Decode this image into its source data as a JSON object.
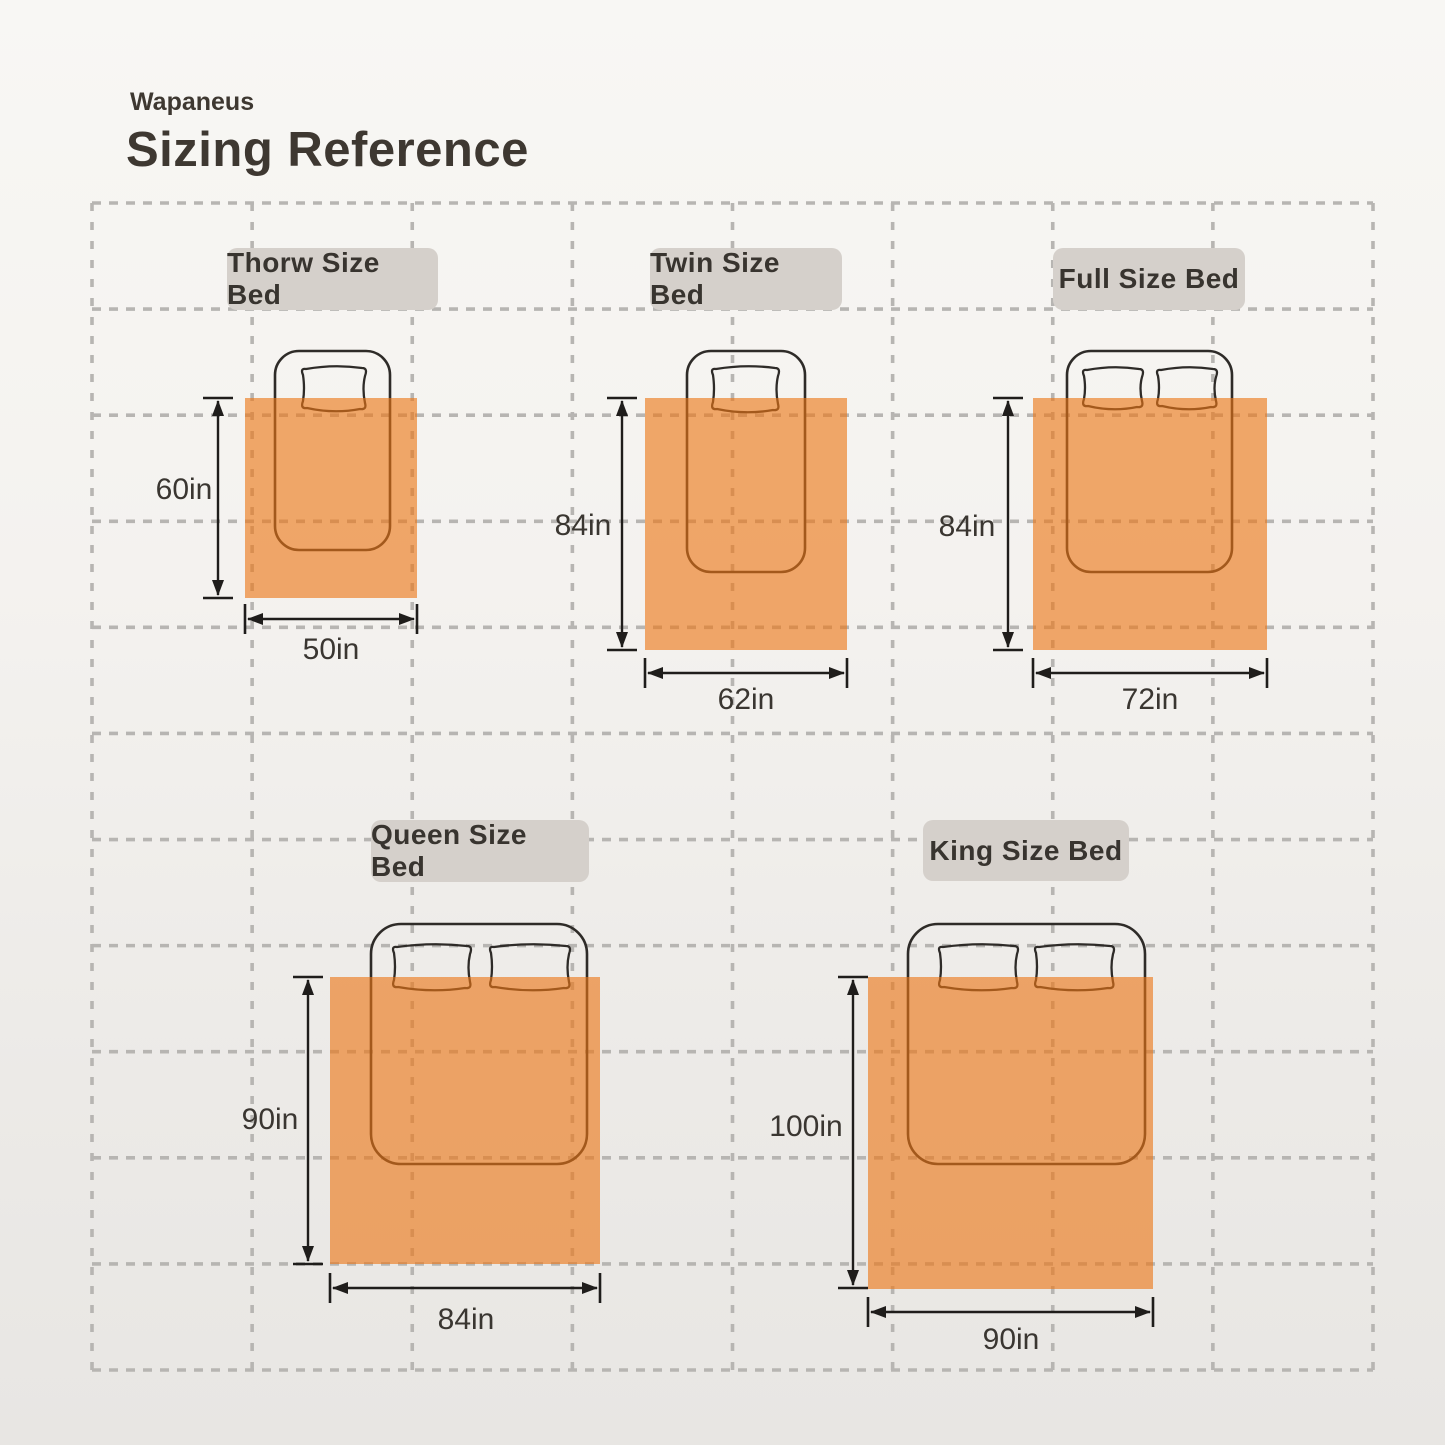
{
  "brand": "Wapaneus",
  "title": "Sizing Reference",
  "beds": [
    {
      "label": "Thorw Size Bed",
      "width_label": "50in",
      "height_label": "60in",
      "pillows": 1
    },
    {
      "label": "Twin Size Bed",
      "width_label": "62in",
      "height_label": "84in",
      "pillows": 1
    },
    {
      "label": "Full Size Bed",
      "width_label": "72in",
      "height_label": "84in",
      "pillows": 2
    },
    {
      "label": "Queen Size Bed",
      "width_label": "84in",
      "height_label": "90in",
      "pillows": 2
    },
    {
      "label": "King Size Bed",
      "width_label": "90in",
      "height_label": "100in",
      "pillows": 2
    }
  ],
  "colors": {
    "background_top": "#f8f7f4",
    "background_bottom": "#e8e6e3",
    "grid": "#b7b5b2",
    "blanket": "#EC7615",
    "bed_outline": "#2e2b28",
    "label_box": "#d5d0cb",
    "text": "#3a3631",
    "dimension_line": "#1f1d1b"
  }
}
